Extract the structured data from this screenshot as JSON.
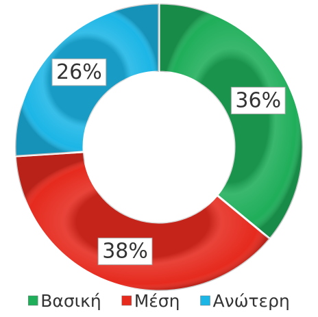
{
  "chart_data": {
    "type": "donut",
    "categories": [
      "Βασική",
      "Μέση",
      "Ανώτερη"
    ],
    "values": [
      36,
      38,
      26
    ],
    "value_labels": [
      "36%",
      "38%",
      "26%"
    ],
    "colors": [
      "#1fae5a",
      "#e62a1e",
      "#1cb6e6"
    ],
    "legend": "bottom"
  }
}
